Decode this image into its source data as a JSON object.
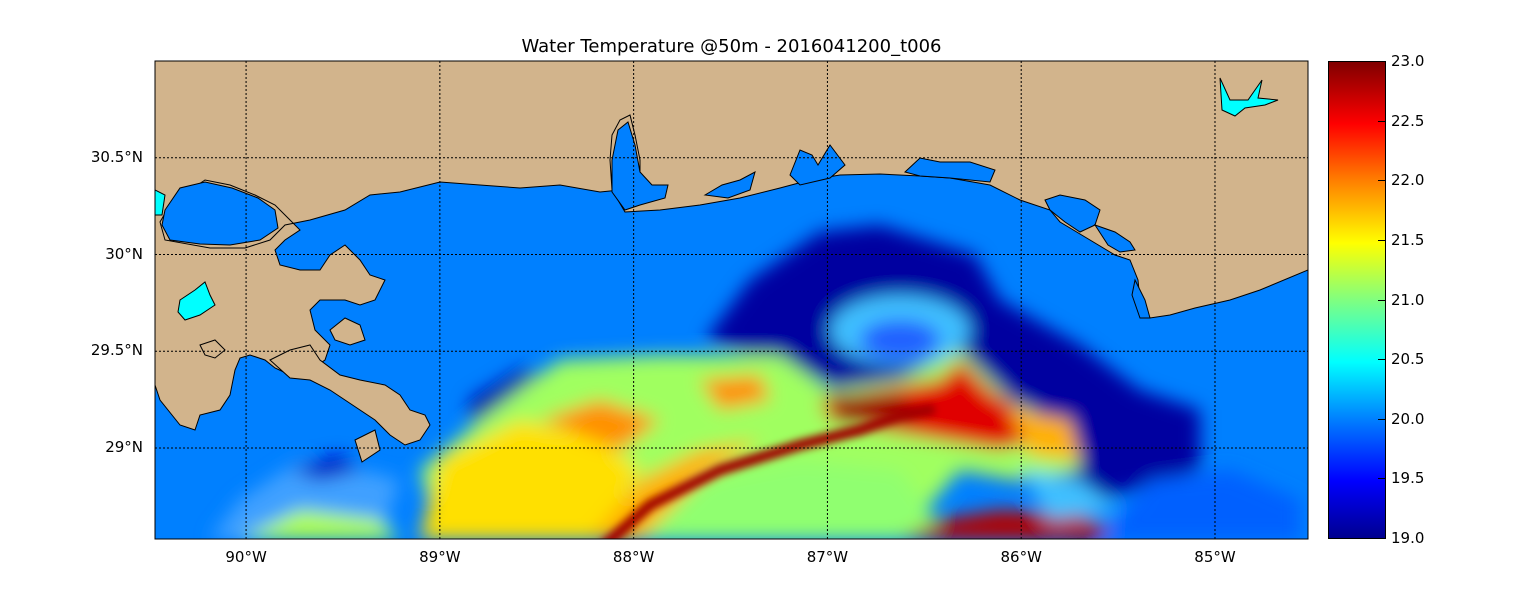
{
  "title": "Water Temperature @50m - 2016041200_t006",
  "lat_ticks": [
    {
      "label": "30.5°N",
      "value": 30.5
    },
    {
      "label": "30°N",
      "value": 30.0
    },
    {
      "label": "29.5°N",
      "value": 29.5
    },
    {
      "label": "29°N",
      "value": 29.0
    }
  ],
  "lon_ticks": [
    {
      "label": "90°W",
      "value": -90
    },
    {
      "label": "89°W",
      "value": -89
    },
    {
      "label": "88°W",
      "value": -88
    },
    {
      "label": "87°W",
      "value": -87
    },
    {
      "label": "86°W",
      "value": -86
    },
    {
      "label": "85°W",
      "value": -85
    }
  ],
  "colorbar": {
    "min": 19.0,
    "max": 23.0,
    "colormap": "jet",
    "ticks": [
      "23.0",
      "22.5",
      "22.0",
      "21.5",
      "21.0",
      "20.5",
      "20.0",
      "19.5",
      "19.0"
    ]
  },
  "colors": {
    "land": "#d2b48c",
    "ocean_background": "#0080ff",
    "lake": "#00ffff",
    "grid": "#000000"
  }
}
